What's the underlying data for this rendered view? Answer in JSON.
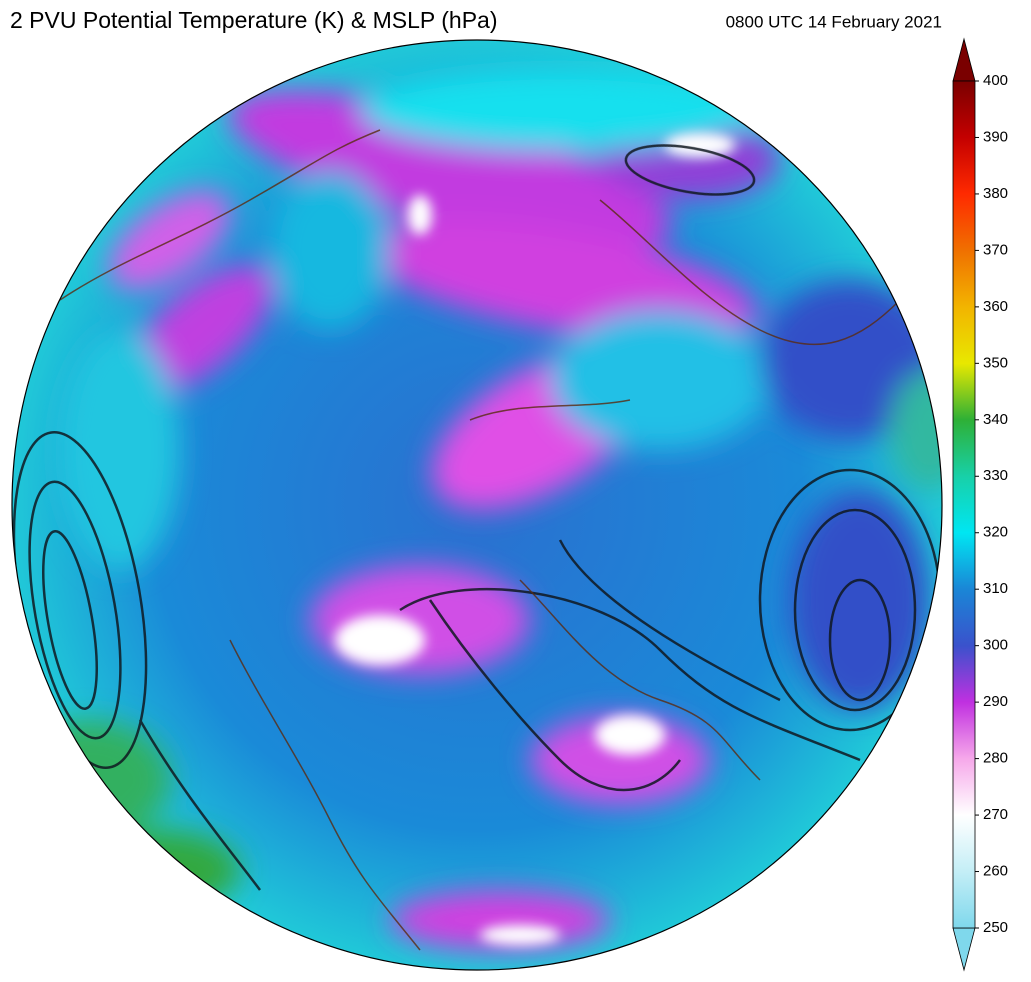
{
  "title": "2 PVU Potential Temperature (K) & MSLP (hPa)",
  "valid_time": "0800 UTC 14 February 2021",
  "colorbar": {
    "lim": [
      250,
      400
    ],
    "ticks": [
      250,
      260,
      270,
      280,
      290,
      300,
      310,
      320,
      330,
      340,
      350,
      360,
      370,
      380,
      390,
      400
    ],
    "colors": [
      "#7fd8ec",
      "#c4eef6",
      "#ffffff",
      "#f6a8ea",
      "#c030e0",
      "#3a52cc",
      "#1a86d6",
      "#00e6f2",
      "#18d0a8",
      "#2eb036",
      "#e8e800",
      "#f2b400",
      "#f07000",
      "#ff2a00",
      "#c40000",
      "#7a0000"
    ]
  }
}
